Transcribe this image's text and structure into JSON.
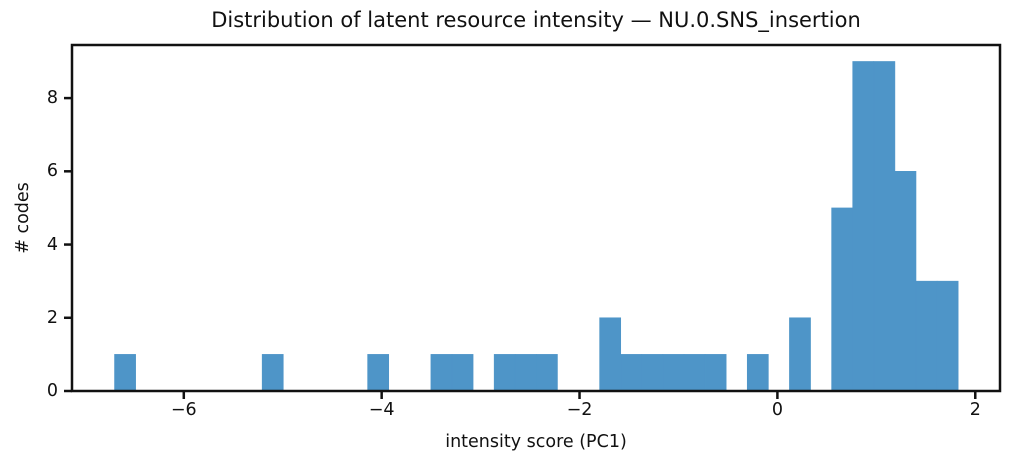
{
  "chart_data": {
    "type": "bar",
    "subtype": "histogram",
    "title": "Distribution of latent resource intensity — NU.0.SNS_insertion",
    "xlabel": "intensity score (PC1)",
    "ylabel": "# codes",
    "bins": {
      "start": -6.7,
      "width": 0.21318,
      "counts": [
        1,
        0,
        0,
        0,
        0,
        0,
        0,
        1,
        0,
        0,
        0,
        0,
        1,
        0,
        0,
        1,
        1,
        0,
        1,
        1,
        1,
        0,
        0,
        2,
        1,
        1,
        1,
        1,
        1,
        0,
        1,
        0,
        2,
        0,
        5,
        9,
        9,
        6,
        3,
        3
      ]
    },
    "total_codes": 53,
    "xlim": [
      -7.13,
      2.25
    ],
    "ylim": [
      0,
      9.45
    ],
    "xticks": [
      {
        "value": -6,
        "label": "−6"
      },
      {
        "value": -4,
        "label": "−4"
      },
      {
        "value": -2,
        "label": "−2"
      },
      {
        "value": 0,
        "label": "0"
      },
      {
        "value": 2,
        "label": "2"
      }
    ],
    "yticks": [
      {
        "value": 0,
        "label": "0"
      },
      {
        "value": 2,
        "label": "2"
      },
      {
        "value": 4,
        "label": "4"
      },
      {
        "value": 6,
        "label": "6"
      },
      {
        "value": 8,
        "label": "8"
      }
    ],
    "bar_color": "#4E95C8",
    "axis_color": "#111111",
    "grid": false,
    "legend_position": "none"
  }
}
